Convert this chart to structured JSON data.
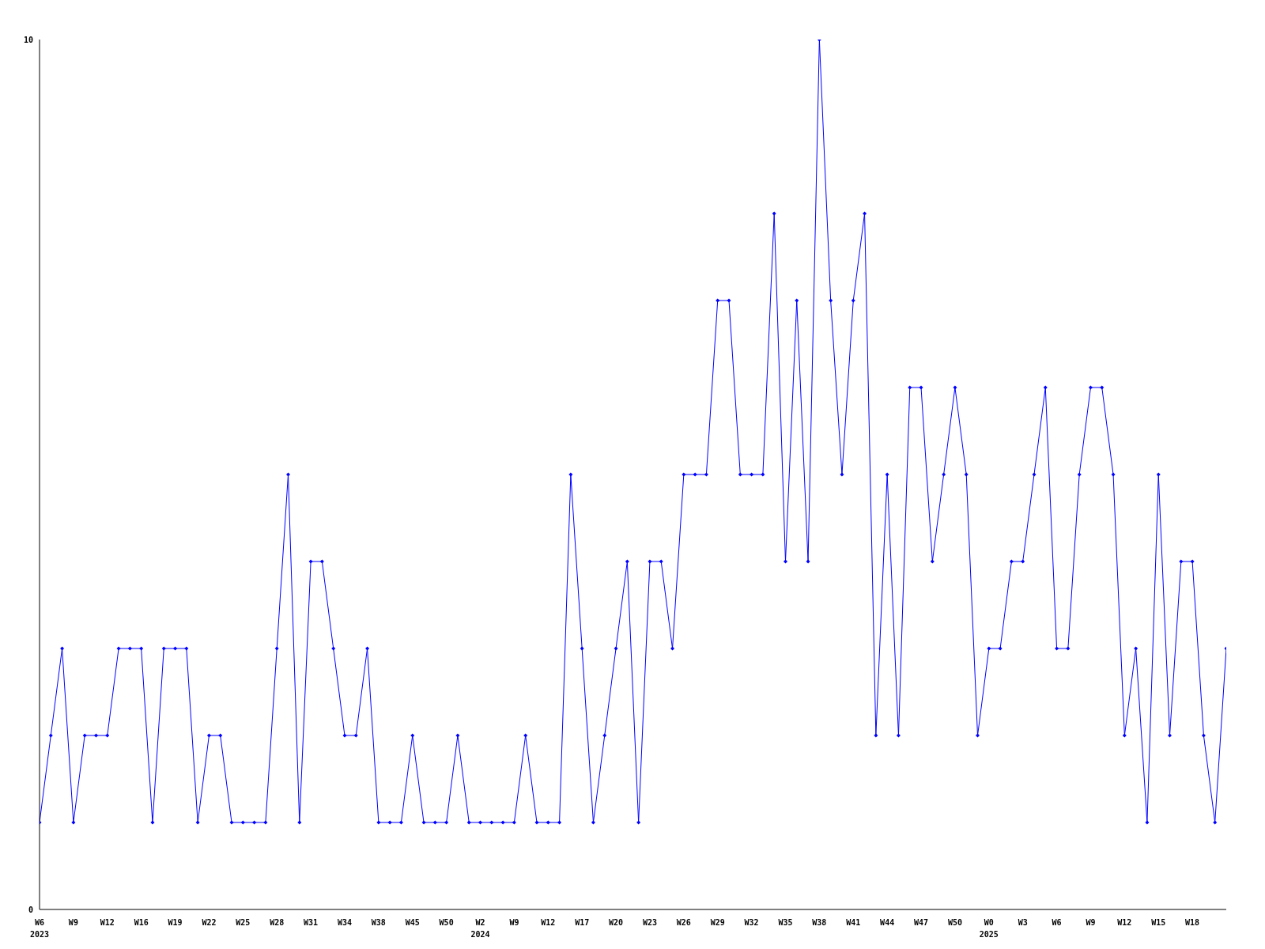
{
  "chart_data": {
    "type": "line",
    "categories": [
      "W6\n2023",
      null,
      null,
      "W9",
      null,
      null,
      "W12",
      null,
      null,
      "W16",
      null,
      null,
      "W19",
      null,
      null,
      "W22",
      null,
      null,
      "W25",
      null,
      null,
      "W28",
      null,
      null,
      "W31",
      null,
      null,
      "W34",
      null,
      null,
      "W38",
      null,
      null,
      "W45",
      null,
      null,
      "W50",
      null,
      null,
      "W2\n2024",
      null,
      null,
      "W9",
      null,
      null,
      "W12",
      null,
      null,
      "W17",
      null,
      null,
      "W20",
      null,
      null,
      "W23",
      null,
      null,
      "W26",
      null,
      null,
      "W29",
      null,
      null,
      "W32",
      null,
      null,
      "W35",
      null,
      null,
      "W38",
      null,
      null,
      "W41",
      null,
      null,
      "W44",
      null,
      null,
      "W47",
      null,
      null,
      "W50",
      null,
      null,
      "W0\n2025",
      null,
      null,
      "W3",
      null,
      null,
      "W6",
      null,
      null,
      "W9",
      null,
      null,
      "W12",
      null,
      null,
      "W15",
      null,
      null,
      "W18",
      null,
      null,
      null
    ],
    "series": [
      {
        "color": "#0000ff",
        "values": [
          1,
          2,
          3,
          1,
          2,
          2,
          2,
          3,
          3,
          3,
          1,
          3,
          3,
          3,
          1,
          2,
          2,
          1,
          1,
          1,
          1,
          3,
          5,
          1,
          4,
          4,
          3,
          2,
          2,
          3,
          1,
          1,
          1,
          2,
          1,
          1,
          1,
          2,
          1,
          1,
          1,
          1,
          1,
          2,
          1,
          1,
          1,
          5,
          3,
          1,
          2,
          3,
          4,
          1,
          4,
          4,
          3,
          5,
          5,
          5,
          7,
          7,
          5,
          5,
          5,
          8,
          4,
          7,
          4,
          10,
          7,
          5,
          7,
          8,
          2,
          5,
          2,
          6,
          6,
          4,
          5,
          6,
          5,
          2,
          3,
          3,
          4,
          4,
          5,
          6,
          3,
          3,
          5,
          6,
          6,
          5,
          2,
          3,
          1,
          5,
          2,
          4,
          4,
          2,
          1,
          3
        ]
      }
    ],
    "ylim": [
      0,
      10
    ],
    "yticks": [
      0,
      10
    ],
    "marker": "diamond"
  }
}
